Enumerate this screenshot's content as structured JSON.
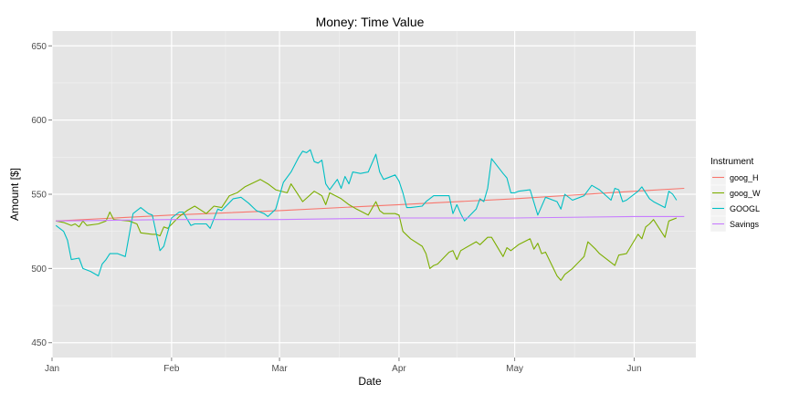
{
  "chart_data": {
    "type": "line",
    "title": "Money:  Time Value",
    "xlabel": "Date",
    "ylabel": "Amount [$]",
    "ylim": [
      440,
      660
    ],
    "xlim": [
      "2014-01-01",
      "2014-06-17"
    ],
    "yticks": [
      450,
      500,
      550,
      600,
      650
    ],
    "xticks": [
      {
        "date": "2014-01-01",
        "label": "Jan"
      },
      {
        "date": "2014-02-01",
        "label": "Feb"
      },
      {
        "date": "2014-03-01",
        "label": "Mar"
      },
      {
        "date": "2014-04-01",
        "label": "Apr"
      },
      {
        "date": "2014-05-01",
        "label": "May"
      },
      {
        "date": "2014-06-01",
        "label": "Jun"
      }
    ],
    "grid": true,
    "legend": {
      "title": "Instrument",
      "position": "right"
    },
    "series": [
      {
        "name": "goog_H",
        "color": "#F8766D",
        "points": [
          [
            "2014-01-02",
            532
          ],
          [
            "2014-02-01",
            536
          ],
          [
            "2014-03-01",
            539
          ],
          [
            "2014-04-01",
            543
          ],
          [
            "2014-05-01",
            547
          ],
          [
            "2014-06-01",
            552
          ],
          [
            "2014-06-14",
            554
          ]
        ]
      },
      {
        "name": "goog_W",
        "color": "#7CAE00",
        "points": [
          [
            "2014-01-02",
            532
          ],
          [
            "2014-01-04",
            531
          ],
          [
            "2014-01-06",
            529
          ],
          [
            "2014-01-07",
            530
          ],
          [
            "2014-01-08",
            528
          ],
          [
            "2014-01-09",
            532
          ],
          [
            "2014-01-10",
            529
          ],
          [
            "2014-01-13",
            530
          ],
          [
            "2014-01-15",
            532
          ],
          [
            "2014-01-16",
            538
          ],
          [
            "2014-01-17",
            533
          ],
          [
            "2014-01-21",
            532
          ],
          [
            "2014-01-23",
            530
          ],
          [
            "2014-01-24",
            524
          ],
          [
            "2014-01-27",
            523
          ],
          [
            "2014-01-28",
            523
          ],
          [
            "2014-01-29",
            522
          ],
          [
            "2014-01-30",
            528
          ],
          [
            "2014-01-31",
            527
          ],
          [
            "2014-02-03",
            535
          ],
          [
            "2014-02-05",
            539
          ],
          [
            "2014-02-07",
            542
          ],
          [
            "2014-02-10",
            537
          ],
          [
            "2014-02-12",
            542
          ],
          [
            "2014-02-14",
            541
          ],
          [
            "2014-02-16",
            549
          ],
          [
            "2014-02-18",
            551
          ],
          [
            "2014-02-20",
            555
          ],
          [
            "2014-02-24",
            560
          ],
          [
            "2014-02-26",
            557
          ],
          [
            "2014-02-28",
            553
          ],
          [
            "2014-03-03",
            551
          ],
          [
            "2014-03-04",
            557
          ],
          [
            "2014-03-06",
            549
          ],
          [
            "2014-03-07",
            545
          ],
          [
            "2014-03-10",
            552
          ],
          [
            "2014-03-12",
            549
          ],
          [
            "2014-03-13",
            543
          ],
          [
            "2014-03-14",
            551
          ],
          [
            "2014-03-17",
            547
          ],
          [
            "2014-03-19",
            543
          ],
          [
            "2014-03-21",
            540
          ],
          [
            "2014-03-24",
            536
          ],
          [
            "2014-03-26",
            545
          ],
          [
            "2014-03-27",
            539
          ],
          [
            "2014-03-28",
            537
          ],
          [
            "2014-03-31",
            537
          ],
          [
            "2014-04-01",
            536
          ],
          [
            "2014-04-02",
            525
          ],
          [
            "2014-04-04",
            520
          ],
          [
            "2014-04-07",
            515
          ],
          [
            "2014-04-08",
            510
          ],
          [
            "2014-04-09",
            500
          ],
          [
            "2014-04-10",
            502
          ],
          [
            "2014-04-11",
            503
          ],
          [
            "2014-04-14",
            511
          ],
          [
            "2014-04-15",
            512
          ],
          [
            "2014-04-16",
            506
          ],
          [
            "2014-04-17",
            512
          ],
          [
            "2014-04-21",
            518
          ],
          [
            "2014-04-22",
            516
          ],
          [
            "2014-04-24",
            521
          ],
          [
            "2014-04-25",
            521
          ],
          [
            "2014-04-28",
            508
          ],
          [
            "2014-04-29",
            514
          ],
          [
            "2014-04-30",
            512
          ],
          [
            "2014-05-01",
            514
          ],
          [
            "2014-05-02",
            516
          ],
          [
            "2014-05-05",
            520
          ],
          [
            "2014-05-06",
            513
          ],
          [
            "2014-05-07",
            517
          ],
          [
            "2014-05-08",
            510
          ],
          [
            "2014-05-09",
            511
          ],
          [
            "2014-05-12",
            495
          ],
          [
            "2014-05-13",
            492
          ],
          [
            "2014-05-14",
            496
          ],
          [
            "2014-05-16",
            500
          ],
          [
            "2014-05-19",
            508
          ],
          [
            "2014-05-20",
            518
          ],
          [
            "2014-05-22",
            513
          ],
          [
            "2014-05-23",
            510
          ],
          [
            "2014-05-27",
            502
          ],
          [
            "2014-05-28",
            509
          ],
          [
            "2014-05-30",
            510
          ],
          [
            "2014-06-02",
            523
          ],
          [
            "2014-06-03",
            520
          ],
          [
            "2014-06-04",
            528
          ],
          [
            "2014-06-05",
            530
          ],
          [
            "2014-06-06",
            533
          ],
          [
            "2014-06-09",
            521
          ],
          [
            "2014-06-10",
            532
          ],
          [
            "2014-06-12",
            534
          ]
        ]
      },
      {
        "name": "GOOGL",
        "color": "#00BFC4",
        "points": [
          [
            "2014-01-02",
            529
          ],
          [
            "2014-01-04",
            525
          ],
          [
            "2014-01-05",
            519
          ],
          [
            "2014-01-06",
            506
          ],
          [
            "2014-01-08",
            507
          ],
          [
            "2014-01-09",
            500
          ],
          [
            "2014-01-11",
            498
          ],
          [
            "2014-01-13",
            495
          ],
          [
            "2014-01-14",
            503
          ],
          [
            "2014-01-15",
            506
          ],
          [
            "2014-01-16",
            510
          ],
          [
            "2014-01-18",
            510
          ],
          [
            "2014-01-20",
            508
          ],
          [
            "2014-01-22",
            537
          ],
          [
            "2014-01-24",
            541
          ],
          [
            "2014-01-26",
            537
          ],
          [
            "2014-01-27",
            536
          ],
          [
            "2014-01-29",
            512
          ],
          [
            "2014-01-30",
            515
          ],
          [
            "2014-02-01",
            534
          ],
          [
            "2014-02-03",
            538
          ],
          [
            "2014-02-04",
            538
          ],
          [
            "2014-02-06",
            529
          ],
          [
            "2014-02-07",
            530
          ],
          [
            "2014-02-10",
            530
          ],
          [
            "2014-02-11",
            527
          ],
          [
            "2014-02-13",
            540
          ],
          [
            "2014-02-14",
            539
          ],
          [
            "2014-02-17",
            547
          ],
          [
            "2014-02-19",
            548
          ],
          [
            "2014-02-21",
            544
          ],
          [
            "2014-02-23",
            539
          ],
          [
            "2014-02-25",
            537
          ],
          [
            "2014-02-26",
            535
          ],
          [
            "2014-02-28",
            540
          ],
          [
            "2014-03-02",
            558
          ],
          [
            "2014-03-04",
            565
          ],
          [
            "2014-03-06",
            575
          ],
          [
            "2014-03-07",
            579
          ],
          [
            "2014-03-08",
            578
          ],
          [
            "2014-03-09",
            580
          ],
          [
            "2014-03-10",
            572
          ],
          [
            "2014-03-11",
            571
          ],
          [
            "2014-03-12",
            573
          ],
          [
            "2014-03-13",
            557
          ],
          [
            "2014-03-14",
            553
          ],
          [
            "2014-03-16",
            560
          ],
          [
            "2014-03-17",
            554
          ],
          [
            "2014-03-18",
            562
          ],
          [
            "2014-03-19",
            557
          ],
          [
            "2014-03-20",
            565
          ],
          [
            "2014-03-22",
            564
          ],
          [
            "2014-03-24",
            565
          ],
          [
            "2014-03-26",
            577
          ],
          [
            "2014-03-27",
            565
          ],
          [
            "2014-03-28",
            560
          ],
          [
            "2014-03-31",
            563
          ],
          [
            "2014-04-01",
            559
          ],
          [
            "2014-04-02",
            551
          ],
          [
            "2014-04-03",
            541
          ],
          [
            "2014-04-04",
            541
          ],
          [
            "2014-04-07",
            542
          ],
          [
            "2014-04-08",
            545
          ],
          [
            "2014-04-10",
            549
          ],
          [
            "2014-04-14",
            549
          ],
          [
            "2014-04-15",
            537
          ],
          [
            "2014-04-16",
            543
          ],
          [
            "2014-04-17",
            537
          ],
          [
            "2014-04-18",
            532
          ],
          [
            "2014-04-21",
            540
          ],
          [
            "2014-04-22",
            547
          ],
          [
            "2014-04-23",
            545
          ],
          [
            "2014-04-24",
            554
          ],
          [
            "2014-04-25",
            574
          ],
          [
            "2014-04-28",
            564
          ],
          [
            "2014-04-29",
            561
          ],
          [
            "2014-04-30",
            551
          ],
          [
            "2014-05-01",
            551
          ],
          [
            "2014-05-02",
            552
          ],
          [
            "2014-05-05",
            553
          ],
          [
            "2014-05-07",
            536
          ],
          [
            "2014-05-09",
            548
          ],
          [
            "2014-05-12",
            545
          ],
          [
            "2014-05-13",
            540
          ],
          [
            "2014-05-14",
            550
          ],
          [
            "2014-05-16",
            546
          ],
          [
            "2014-05-19",
            549
          ],
          [
            "2014-05-21",
            556
          ],
          [
            "2014-05-23",
            553
          ],
          [
            "2014-05-26",
            546
          ],
          [
            "2014-05-27",
            554
          ],
          [
            "2014-05-28",
            553
          ],
          [
            "2014-05-29",
            545
          ],
          [
            "2014-05-30",
            546
          ],
          [
            "2014-06-02",
            552
          ],
          [
            "2014-06-03",
            555
          ],
          [
            "2014-06-04",
            551
          ],
          [
            "2014-06-05",
            547
          ],
          [
            "2014-06-06",
            545
          ],
          [
            "2014-06-09",
            541
          ],
          [
            "2014-06-10",
            552
          ],
          [
            "2014-06-11",
            550
          ],
          [
            "2014-06-12",
            546
          ]
        ]
      },
      {
        "name": "Savings",
        "color": "#C77CFF",
        "points": [
          [
            "2014-01-02",
            532
          ],
          [
            "2014-02-01",
            533
          ],
          [
            "2014-03-01",
            533
          ],
          [
            "2014-04-01",
            534
          ],
          [
            "2014-05-01",
            534
          ],
          [
            "2014-06-01",
            535
          ],
          [
            "2014-06-14",
            535
          ]
        ]
      }
    ]
  }
}
